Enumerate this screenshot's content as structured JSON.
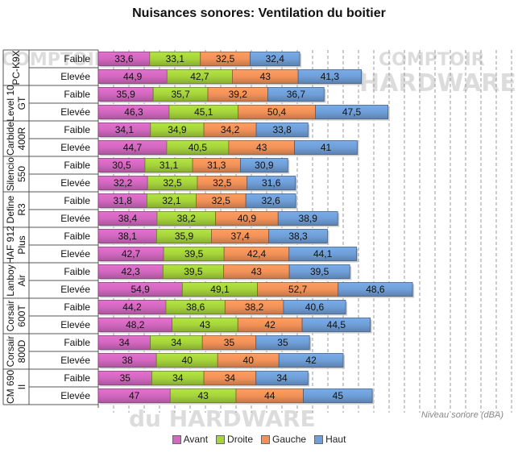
{
  "chart_data": {
    "type": "bar",
    "orientation": "horizontal",
    "stacked": true,
    "title": "Nuisances sonores: Ventilation du boitier",
    "xlabel": "Niveau sonore (dBA)",
    "grid": true,
    "legend_position": "bottom",
    "groups": [
      {
        "name": "PC-K9X",
        "rows": [
          {
            "label": "Faible",
            "values": [
              33.6,
              33.1,
              32.5,
              32.4
            ],
            "value_labels": [
              "33,6",
              "33,1",
              "32,5",
              "32,4"
            ]
          },
          {
            "label": "Elevée",
            "values": [
              44.9,
              42.7,
              43,
              41.3
            ],
            "value_labels": [
              "44,9",
              "42,7",
              "43",
              "41,3"
            ]
          }
        ]
      },
      {
        "name": "Level 10 GT",
        "rows": [
          {
            "label": "Faible",
            "values": [
              35.9,
              35.7,
              39.2,
              36.7
            ],
            "value_labels": [
              "35,9",
              "35,7",
              "39,2",
              "36,7"
            ]
          },
          {
            "label": "Elevée",
            "values": [
              46.3,
              45.1,
              50.4,
              47.5
            ],
            "value_labels": [
              "46,3",
              "45,1",
              "50,4",
              "47,5"
            ]
          }
        ]
      },
      {
        "name": "Carbide 400R",
        "rows": [
          {
            "label": "Faible",
            "values": [
              34.1,
              34.9,
              34.2,
              33.8
            ],
            "value_labels": [
              "34,1",
              "34,9",
              "34,2",
              "33,8"
            ]
          },
          {
            "label": "Elevée",
            "values": [
              44.7,
              40.5,
              43,
              41
            ],
            "value_labels": [
              "44,7",
              "40,5",
              "43",
              "41"
            ]
          }
        ]
      },
      {
        "name": "Silencio 550",
        "rows": [
          {
            "label": "Faible",
            "values": [
              30.5,
              31.1,
              31.3,
              30.9
            ],
            "value_labels": [
              "30,5",
              "31,1",
              "31,3",
              "30,9"
            ]
          },
          {
            "label": "Elevée",
            "values": [
              32.2,
              32.5,
              32.5,
              31.6
            ],
            "value_labels": [
              "32,2",
              "32,5",
              "32,5",
              "31,6"
            ]
          }
        ]
      },
      {
        "name": "Define R3",
        "rows": [
          {
            "label": "Faible",
            "values": [
              31.8,
              32.1,
              32.5,
              32.6
            ],
            "value_labels": [
              "31,8",
              "32,1",
              "32,5",
              "32,6"
            ]
          },
          {
            "label": "Elevée",
            "values": [
              38.4,
              38.2,
              40.9,
              38.9
            ],
            "value_labels": [
              "38,4",
              "38,2",
              "40,9",
              "38,9"
            ]
          }
        ]
      },
      {
        "name": "HAF 912 Plus",
        "rows": [
          {
            "label": "Faible",
            "values": [
              38.1,
              35.9,
              37.4,
              38.3
            ],
            "value_labels": [
              "38,1",
              "35,9",
              "37,4",
              "38,3"
            ]
          },
          {
            "label": "Elevée",
            "values": [
              42.7,
              39.5,
              42.4,
              44.1
            ],
            "value_labels": [
              "42,7",
              "39,5",
              "42,4",
              "44,1"
            ]
          }
        ]
      },
      {
        "name": "Lanboy Air",
        "rows": [
          {
            "label": "Faible",
            "values": [
              42.3,
              39.5,
              43,
              39.5
            ],
            "value_labels": [
              "42,3",
              "39,5",
              "43",
              "39,5"
            ]
          },
          {
            "label": "Elevée",
            "values": [
              54.9,
              49.1,
              52.7,
              48.6
            ],
            "value_labels": [
              "54,9",
              "49,1",
              "52,7",
              "48,6"
            ]
          }
        ]
      },
      {
        "name": "Corsair 600T",
        "rows": [
          {
            "label": "Faible",
            "values": [
              44.2,
              38.6,
              38.2,
              40.6
            ],
            "value_labels": [
              "44,2",
              "38,6",
              "38,2",
              "40,6"
            ]
          },
          {
            "label": "Elevée",
            "values": [
              48.2,
              43,
              42,
              44.5
            ],
            "value_labels": [
              "48,2",
              "43",
              "42",
              "44,5"
            ]
          }
        ]
      },
      {
        "name": "Corsair 800D",
        "rows": [
          {
            "label": "Faible",
            "values": [
              34,
              34,
              35,
              35
            ],
            "value_labels": [
              "34",
              "34",
              "35",
              "35"
            ]
          },
          {
            "label": "Elevée",
            "values": [
              38,
              40,
              40,
              42
            ],
            "value_labels": [
              "38",
              "40",
              "40",
              "42"
            ]
          }
        ]
      },
      {
        "name": "CM 690 II",
        "rows": [
          {
            "label": "Faible",
            "values": [
              35,
              34,
              34,
              34
            ],
            "value_labels": [
              "35",
              "34",
              "34",
              "34"
            ]
          },
          {
            "label": "Elevée",
            "values": [
              47,
              43,
              44,
              45
            ],
            "value_labels": [
              "47",
              "43",
              "44",
              "45"
            ]
          }
        ]
      }
    ],
    "series": [
      {
        "name": "Avant",
        "color": "#d368c0"
      },
      {
        "name": "Droite",
        "color": "#a6d43c"
      },
      {
        "name": "Gauche",
        "color": "#f29259"
      },
      {
        "name": "Haut",
        "color": "#6f9fd8"
      }
    ],
    "xlim": [
      0,
      200
    ],
    "gridline_step": 10
  },
  "watermark": {
    "top_right": "COMPTOIR",
    "top_right_2": "HARDWARE",
    "bottom": "du HARDWARE",
    "left": "COMPTOIR"
  }
}
